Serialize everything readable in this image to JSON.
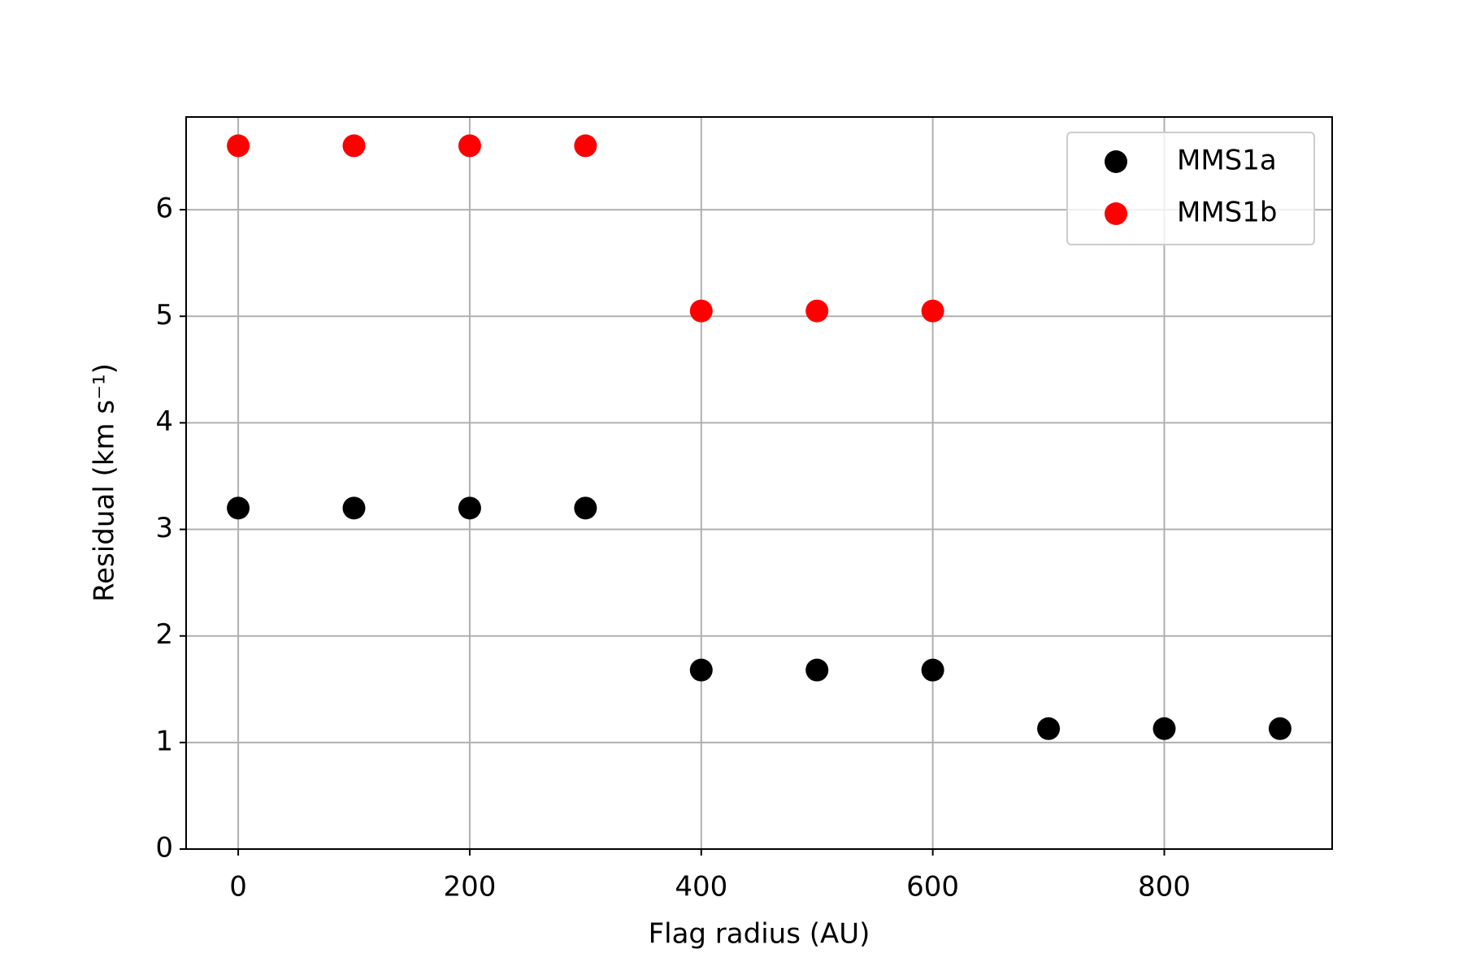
{
  "chart_data": {
    "type": "scatter",
    "xlabel": "Flag radius (AU)",
    "ylabel": "Residual (km s⁻¹)",
    "series": [
      {
        "name": "MMS1a",
        "color": "#000000",
        "x": [
          0,
          100,
          200,
          300,
          400,
          500,
          600,
          700,
          800,
          900
        ],
        "values": [
          3.2,
          3.2,
          3.2,
          3.2,
          1.68,
          1.68,
          1.68,
          1.13,
          1.13,
          1.13
        ]
      },
      {
        "name": "MMS1b",
        "color": "#ff0000",
        "x": [
          0,
          100,
          200,
          300,
          400,
          500,
          600
        ],
        "values": [
          6.6,
          6.6,
          6.6,
          6.6,
          5.05,
          5.05,
          5.05
        ]
      }
    ],
    "xlim": [
      -45,
      945
    ],
    "ylim": [
      0,
      6.87
    ],
    "xticks": [
      0,
      200,
      400,
      600,
      800
    ],
    "yticks": [
      0,
      1,
      2,
      3,
      4,
      5,
      6
    ],
    "grid": true,
    "legend": "upper right"
  }
}
